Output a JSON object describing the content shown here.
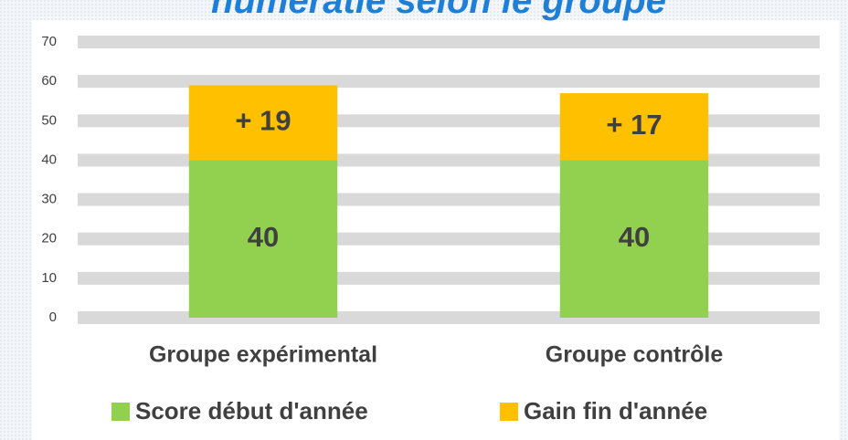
{
  "chart_data": {
    "type": "stacked_bar",
    "title": "numératie selon le groupe",
    "categories": [
      "Groupe expérimental",
      "Groupe contrôle"
    ],
    "series": [
      {
        "name": "Score début d'année",
        "color": "#92d050",
        "values": [
          40,
          40
        ],
        "value_labels": [
          "40",
          "40"
        ]
      },
      {
        "name": "Gain fin d'année",
        "color": "#ffc000",
        "values": [
          19,
          17
        ],
        "value_labels": [
          "+ 19",
          "+ 17"
        ]
      }
    ],
    "ylim": [
      0,
      70
    ],
    "yticks": [
      0,
      10,
      20,
      30,
      40,
      50,
      60,
      70
    ],
    "grid": true,
    "legend": "bottom"
  }
}
